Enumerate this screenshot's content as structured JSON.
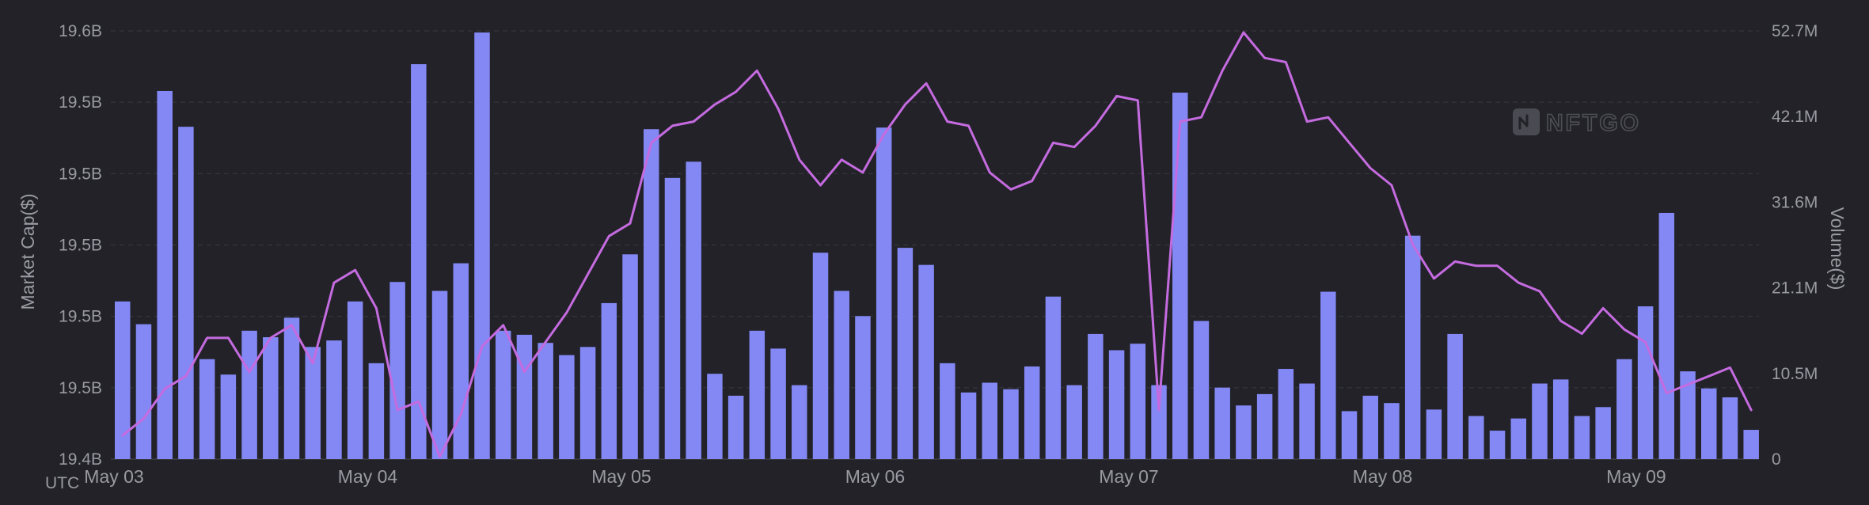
{
  "chart_data": {
    "type": "bar+line",
    "y_left_label": "Market Cap($)",
    "y_right_label": "Volume($)",
    "x_axis_prefix": "UTC",
    "x_ticks": [
      "May 03",
      "May 04",
      "May 05",
      "May 06",
      "May 07",
      "May 08",
      "May 09"
    ],
    "y_left_ticks": [
      "19.4B",
      "19.5B",
      "19.5B",
      "19.5B",
      "19.5B",
      "19.5B",
      "19.6B"
    ],
    "y_right_ticks": [
      "0",
      "10.5M",
      "21.1M",
      "31.6M",
      "42.1M",
      "52.7M"
    ],
    "y_right_range": [
      0,
      52.7
    ],
    "watermark": "NFTGO",
    "colors": {
      "background": "#222228",
      "bars": "#8388f4",
      "line": "#c56be0",
      "text": "#9a9aa3",
      "grid": "#3a3a42"
    },
    "series": [
      {
        "type": "bar",
        "unit": "M USD",
        "values": [
          19.4,
          16.6,
          45.3,
          40.9,
          12.3,
          10.4,
          15.8,
          15.0,
          17.4,
          13.8,
          14.6,
          19.4,
          11.8,
          21.8,
          48.6,
          20.7,
          24.1,
          52.5,
          15.8,
          15.3,
          14.3,
          12.8,
          13.8,
          19.2,
          25.2,
          40.6,
          34.6,
          36.6,
          10.5,
          7.8,
          15.8,
          13.6,
          9.1,
          25.4,
          20.7,
          17.6,
          40.8,
          26.0,
          23.9,
          11.8,
          8.2,
          9.4,
          8.6,
          11.4,
          20.0,
          9.1,
          15.4,
          13.4,
          14.2,
          9.1,
          45.1,
          17.0,
          8.8,
          6.6,
          8.0,
          11.1,
          9.3,
          20.6,
          5.9,
          7.8,
          6.9,
          27.5,
          6.1,
          15.4,
          5.3,
          3.5,
          5.0,
          9.3,
          9.8,
          5.3,
          6.4,
          12.3,
          18.8,
          30.3,
          10.8,
          8.7,
          7.6,
          3.6
        ]
      },
      {
        "type": "line",
        "unit": "relative market cap (0-100)",
        "values": [
          5,
          9,
          16,
          19,
          28,
          28,
          20,
          28,
          31,
          22,
          41,
          44,
          35,
          11,
          13,
          0,
          10,
          26,
          31,
          20,
          27,
          34,
          43,
          52,
          55,
          74,
          78,
          79,
          83,
          86,
          91,
          82,
          70,
          64,
          70,
          67,
          76,
          83,
          88,
          79,
          78,
          67,
          63,
          65,
          74,
          73,
          78,
          85,
          84,
          11,
          79,
          80,
          91,
          100,
          94,
          93,
          79,
          80,
          74,
          68,
          64,
          50,
          42,
          46,
          45,
          45,
          41,
          39,
          32,
          29,
          35,
          30,
          27,
          15,
          17,
          19,
          21,
          11
        ]
      }
    ]
  }
}
